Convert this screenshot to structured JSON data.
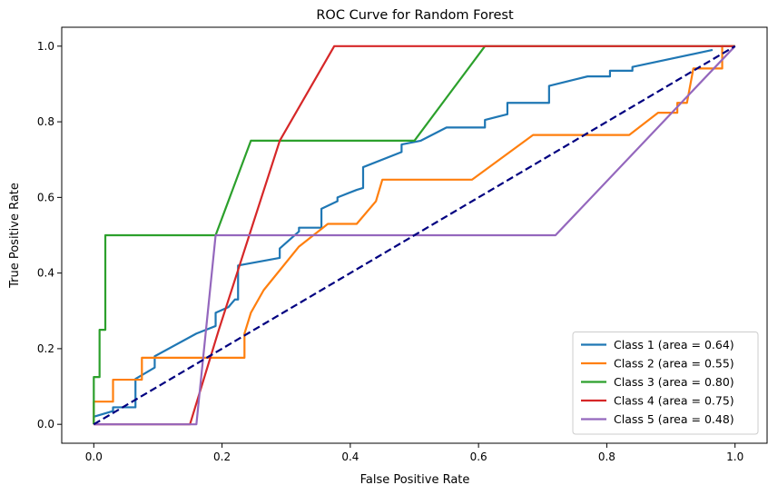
{
  "chart_data": {
    "type": "line",
    "title": "ROC Curve for Random Forest",
    "xlabel": "False Positive Rate",
    "ylabel": "True Positive Rate",
    "xlim": [
      -0.05,
      1.05
    ],
    "ylim": [
      -0.05,
      1.05
    ],
    "xticks": [
      0.0,
      0.2,
      0.4,
      0.6,
      0.8,
      1.0
    ],
    "yticks": [
      0.0,
      0.2,
      0.4,
      0.6,
      0.8,
      1.0
    ],
    "xtick_labels": [
      "0.0",
      "0.2",
      "0.4",
      "0.6",
      "0.8",
      "1.0"
    ],
    "ytick_labels": [
      "0.0",
      "0.2",
      "0.4",
      "0.6",
      "0.8",
      "1.0"
    ],
    "grid": false,
    "legend_position": "lower-right",
    "series": [
      {
        "name": "Class 1 (area = 0.64)",
        "color": "#1f77b4",
        "x": [
          0.0,
          0.0,
          0.03,
          0.03,
          0.065,
          0.065,
          0.095,
          0.095,
          0.16,
          0.19,
          0.19,
          0.21,
          0.22,
          0.225,
          0.225,
          0.29,
          0.29,
          0.32,
          0.32,
          0.355,
          0.355,
          0.38,
          0.38,
          0.41,
          0.42,
          0.42,
          0.48,
          0.48,
          0.51,
          0.55,
          0.61,
          0.61,
          0.645,
          0.645,
          0.71,
          0.71,
          0.77,
          0.805,
          0.805,
          0.84,
          0.84,
          0.965,
          0.965
        ],
        "y": [
          0.0,
          0.02,
          0.035,
          0.045,
          0.045,
          0.12,
          0.15,
          0.18,
          0.24,
          0.26,
          0.295,
          0.31,
          0.33,
          0.33,
          0.42,
          0.44,
          0.465,
          0.51,
          0.52,
          0.52,
          0.57,
          0.59,
          0.6,
          0.62,
          0.625,
          0.68,
          0.72,
          0.74,
          0.75,
          0.785,
          0.785,
          0.805,
          0.82,
          0.85,
          0.85,
          0.895,
          0.92,
          0.92,
          0.935,
          0.935,
          0.945,
          0.99,
          0.99
        ]
      },
      {
        "name": "Class 2 (area = 0.55)",
        "color": "#ff7f0e",
        "x": [
          0.0,
          0.0,
          0.03,
          0.03,
          0.075,
          0.075,
          0.235,
          0.235,
          0.245,
          0.265,
          0.32,
          0.365,
          0.41,
          0.44,
          0.45,
          0.45,
          0.59,
          0.685,
          0.835,
          0.88,
          0.91,
          0.91,
          0.925,
          0.935,
          0.935,
          0.98,
          0.98,
          1.0
        ],
        "y": [
          0.0,
          0.06,
          0.06,
          0.118,
          0.118,
          0.176,
          0.176,
          0.24,
          0.295,
          0.355,
          0.47,
          0.53,
          0.53,
          0.59,
          0.647,
          0.647,
          0.647,
          0.765,
          0.765,
          0.824,
          0.824,
          0.85,
          0.85,
          0.941,
          0.941,
          0.941,
          1.0,
          1.0
        ]
      },
      {
        "name": "Class 3 (area = 0.80)",
        "color": "#2ca02c",
        "x": [
          0.0,
          0.0,
          0.009,
          0.009,
          0.018,
          0.018,
          0.19,
          0.245,
          0.5,
          0.61,
          0.615,
          1.0
        ],
        "y": [
          0.0,
          0.125,
          0.125,
          0.25,
          0.25,
          0.5,
          0.5,
          0.75,
          0.75,
          1.0,
          1.0,
          1.0
        ]
      },
      {
        "name": "Class 4 (area = 0.75)",
        "color": "#d62728",
        "x": [
          0.0,
          0.15,
          0.195,
          0.29,
          0.375,
          1.0
        ],
        "y": [
          0.0,
          0.0,
          0.25,
          0.75,
          1.0,
          1.0
        ]
      },
      {
        "name": "Class 5 (area = 0.48)",
        "color": "#9467bd",
        "x": [
          0.0,
          0.16,
          0.19,
          0.72,
          1.0
        ],
        "y": [
          0.0,
          0.0,
          0.5,
          0.5,
          1.0
        ]
      },
      {
        "name": "",
        "color": "#000080",
        "dashed": true,
        "x": [
          0.0,
          1.0
        ],
        "y": [
          0.0,
          1.0
        ]
      }
    ]
  }
}
